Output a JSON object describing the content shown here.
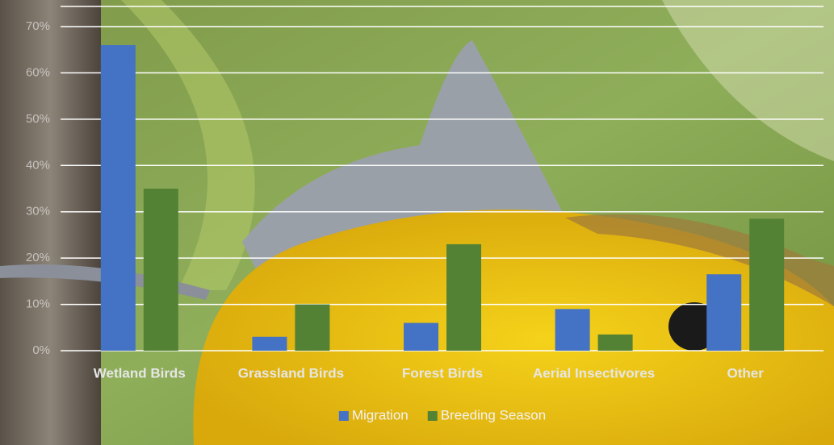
{
  "chart_data": {
    "type": "bar",
    "categories": [
      "Wetland Birds",
      "Grassland Birds",
      "Forest Birds",
      "Aerial Insectivores",
      "Other"
    ],
    "series": [
      {
        "name": "Migration",
        "color": "#4472c4",
        "values": [
          66,
          3,
          6,
          9,
          16.5
        ]
      },
      {
        "name": "Breeding Season",
        "color": "#548235",
        "values": [
          35,
          10,
          23,
          3.5,
          28.5
        ]
      }
    ],
    "ylim": [
      0,
      70
    ],
    "yticks": [
      {
        "value": 0,
        "label": "0%"
      },
      {
        "value": 10,
        "label": "10%"
      },
      {
        "value": 20,
        "label": "20%"
      },
      {
        "value": 30,
        "label": "30%"
      },
      {
        "value": 40,
        "label": "40%"
      },
      {
        "value": 50,
        "label": "50%"
      },
      {
        "value": 60,
        "label": "60%"
      },
      {
        "value": 70,
        "label": "70%"
      }
    ],
    "grid": true,
    "legend": "bottom"
  }
}
